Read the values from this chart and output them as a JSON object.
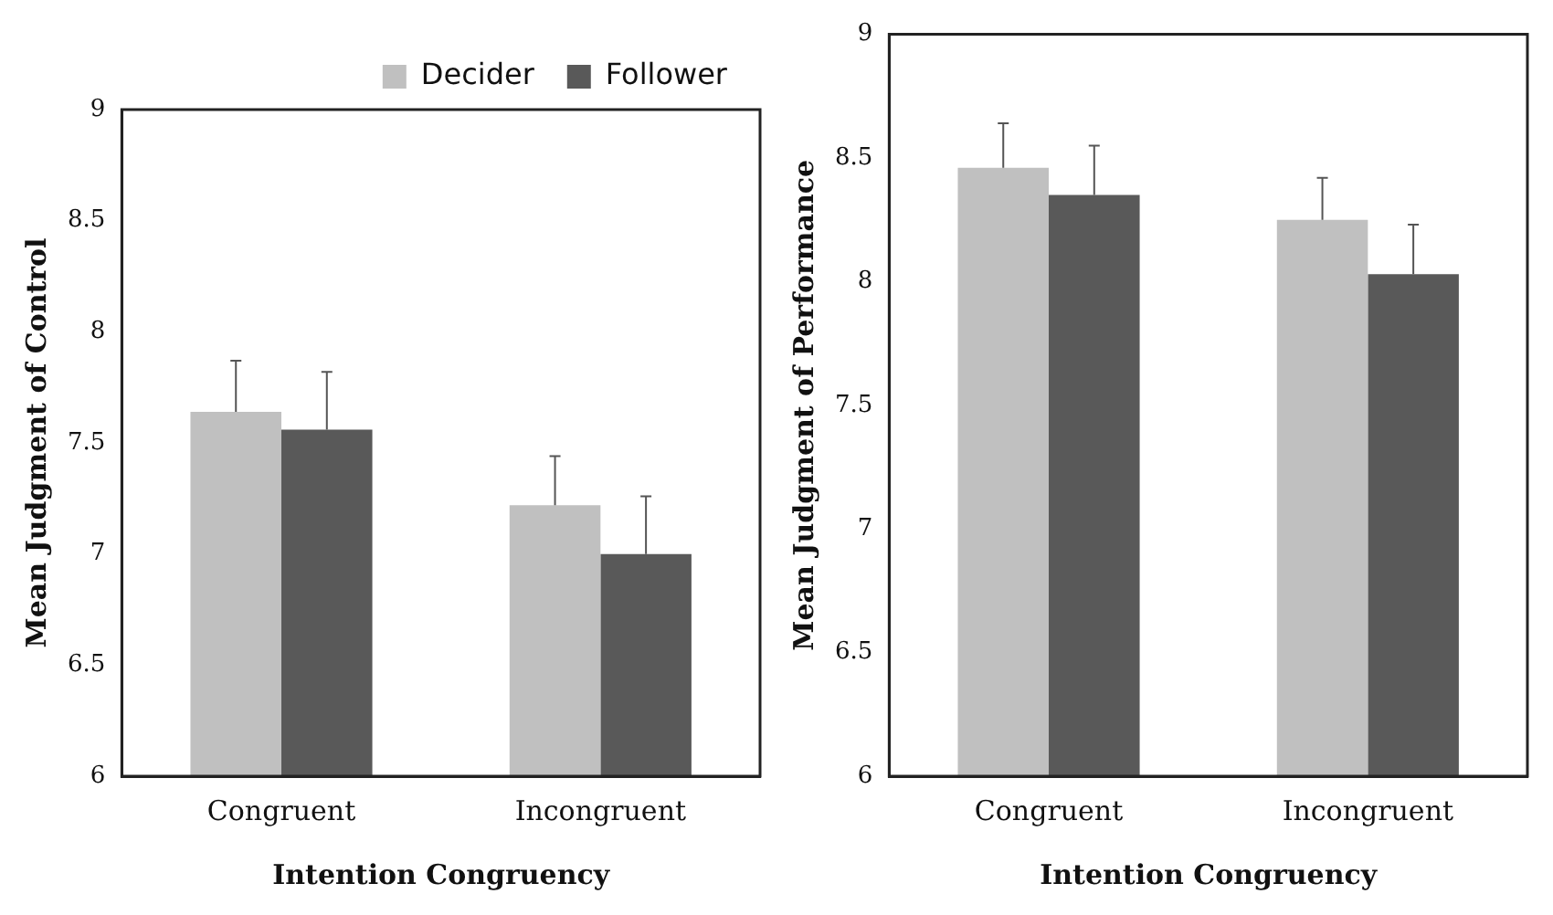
{
  "chart_data": [
    {
      "type": "bar",
      "xlabel": "Intention Congruency",
      "ylabel": "Mean Judgment of Control",
      "categories": [
        "Congruent",
        "Incongruent"
      ],
      "ylim": [
        6,
        9
      ],
      "yticks": [
        6,
        6.5,
        7,
        7.5,
        8,
        8.5,
        9
      ],
      "grid": false,
      "legend": "top right",
      "series": [
        {
          "name": "Decider",
          "color": "#c0c0c0",
          "values": [
            7.64,
            7.22
          ],
          "errors": [
            [
              7.64,
              7.87
            ],
            [
              7.22,
              7.44
            ]
          ]
        },
        {
          "name": "Follower",
          "color": "#595959",
          "values": [
            7.56,
            7.0
          ],
          "errors": [
            [
              7.56,
              7.82
            ],
            [
              7.0,
              7.26
            ]
          ]
        }
      ]
    },
    {
      "type": "bar",
      "xlabel": "Intention Congruency",
      "ylabel": "Mean Judgment of Performance",
      "categories": [
        "Congruent",
        "Incongruent"
      ],
      "ylim": [
        6,
        9
      ],
      "yticks": [
        6,
        6.5,
        7,
        7.5,
        8,
        8.5,
        9
      ],
      "grid": false,
      "legend": false,
      "series": [
        {
          "color": "#c0c0c0",
          "values": [
            8.46,
            8.25
          ],
          "errors": [
            [
              8.46,
              8.64
            ],
            [
              8.25,
              8.42
            ]
          ]
        },
        {
          "color": "#595959",
          "values": [
            8.35,
            8.03
          ],
          "errors": [
            [
              8.35,
              8.55
            ],
            [
              8.03,
              8.23
            ]
          ]
        }
      ]
    }
  ]
}
